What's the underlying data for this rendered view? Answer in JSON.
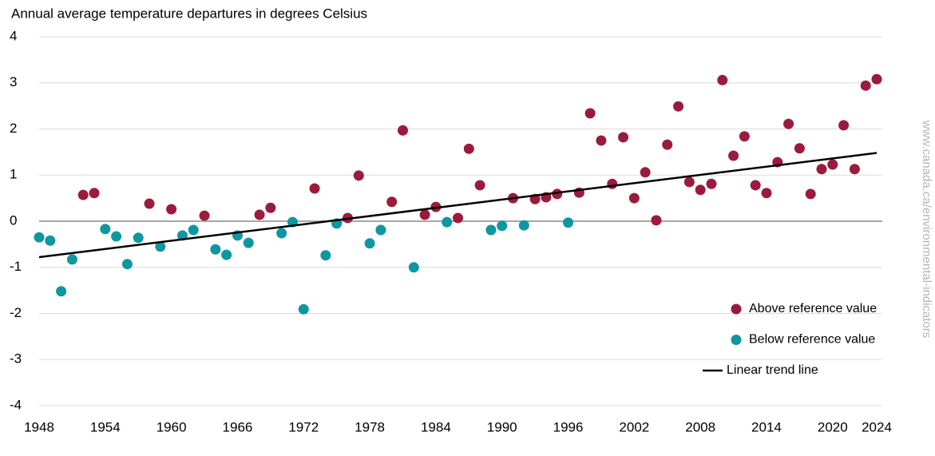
{
  "chart_data": {
    "type": "scatter",
    "title": "Annual average temperature departures in degrees Celsius",
    "watermark": "www.canada.ca/environmental-indicators",
    "xlim": [
      1948,
      2024
    ],
    "xticks": [
      1948,
      1954,
      1960,
      1966,
      1972,
      1978,
      1984,
      1990,
      1996,
      2002,
      2008,
      2014,
      2020,
      2024
    ],
    "ylim": [
      -4,
      4
    ],
    "yticks": [
      -4,
      -3,
      -2,
      -1,
      0,
      1,
      2,
      3,
      4
    ],
    "grid": true,
    "legend": "lower right",
    "series": [
      {
        "name": "Above reference value",
        "color": "#9b1b3c",
        "x": [
          1952,
          1953,
          1958,
          1960,
          1963,
          1968,
          1969,
          1973,
          1976,
          1977,
          1980,
          1981,
          1983,
          1984,
          1986,
          1987,
          1988,
          1991,
          1993,
          1994,
          1995,
          1997,
          1998,
          1999,
          2000,
          2001,
          2002,
          2003,
          2004,
          2005,
          2006,
          2007,
          2008,
          2009,
          2010,
          2011,
          2012,
          2013,
          2014,
          2015,
          2016,
          2017,
          2018,
          2019,
          2020,
          2021,
          2022,
          2023,
          2024
        ],
        "values": [
          0.57,
          0.61,
          0.38,
          0.26,
          0.12,
          0.14,
          0.29,
          0.71,
          0.07,
          0.99,
          0.42,
          1.97,
          0.14,
          0.31,
          0.07,
          1.57,
          0.78,
          0.5,
          0.48,
          0.52,
          0.59,
          0.62,
          2.34,
          1.75,
          0.81,
          1.82,
          0.5,
          1.06,
          0.02,
          1.66,
          2.49,
          0.85,
          0.68,
          0.81,
          3.06,
          1.42,
          1.84,
          0.78,
          0.61,
          1.28,
          2.11,
          1.58,
          0.59,
          1.13,
          1.23,
          2.08,
          1.13,
          2.94,
          3.08
        ]
      },
      {
        "name": "Below reference value",
        "color": "#0e97a1",
        "x": [
          1948,
          1949,
          1950,
          1951,
          1954,
          1955,
          1956,
          1957,
          1959,
          1961,
          1962,
          1964,
          1965,
          1966,
          1967,
          1970,
          1971,
          1972,
          1974,
          1975,
          1978,
          1979,
          1982,
          1985,
          1989,
          1990,
          1992,
          1996
        ],
        "values": [
          -0.35,
          -0.42,
          -1.52,
          -0.83,
          -0.17,
          -0.33,
          -0.93,
          -0.36,
          -0.55,
          -0.31,
          -0.19,
          -0.61,
          -0.73,
          -0.31,
          -0.47,
          -0.26,
          -0.02,
          -1.91,
          -0.74,
          -0.05,
          -0.48,
          -0.19,
          -1.0,
          -0.02,
          -0.19,
          -0.1,
          -0.09,
          -0.03
        ]
      },
      {
        "name": "Linear trend line",
        "color": "#000000",
        "line": true,
        "x": [
          1948,
          2024
        ],
        "values": [
          -0.78,
          1.48
        ]
      }
    ]
  }
}
